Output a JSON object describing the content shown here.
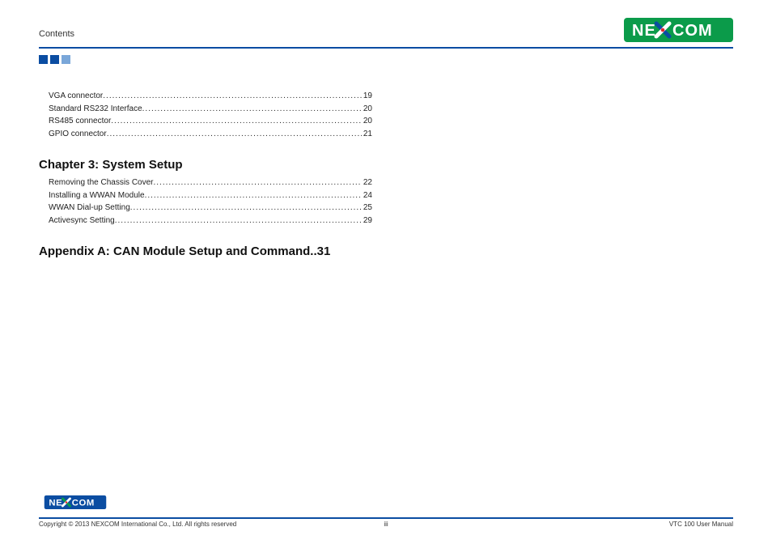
{
  "brand": {
    "name": "NEXCOM",
    "logo_bg": "#0b9b4a",
    "logo_text": "#ffffff",
    "logo_accent_blue": "#0b4da2",
    "logo_accent_red": "#e0262e"
  },
  "header": {
    "section_label": "Contents",
    "rule_color": "#0b4da2",
    "squares": [
      "#0b4da2",
      "#0b4da2",
      "#7aa7d9"
    ]
  },
  "toc_pre": [
    {
      "text": "VGA connector",
      "page": "19"
    },
    {
      "text": "Standard RS232 Interface",
      "page": "20"
    },
    {
      "text": "RS485 connector",
      "page": "20"
    },
    {
      "text": "GPIO connector",
      "page": "21"
    }
  ],
  "chapter3": {
    "title": "Chapter 3: System Setup",
    "items": [
      {
        "text": "Removing the Chassis Cover",
        "page": "22"
      },
      {
        "text": "Installing a WWAN Module",
        "page": "24"
      },
      {
        "text": "WWAN Dial-up Setting",
        "page": "25"
      },
      {
        "text": "Activesync Setting",
        "page": "29"
      }
    ]
  },
  "appendix": {
    "title_text": "Appendix A: CAN Module Setup and Command",
    "dots": "..",
    "page": "31"
  },
  "footer": {
    "copyright": "Copyright © 2013 NEXCOM International Co., Ltd. All rights reserved",
    "page_num": "iii",
    "doc": "VTC 100 User Manual",
    "logo_bg": "#0b4da2"
  }
}
